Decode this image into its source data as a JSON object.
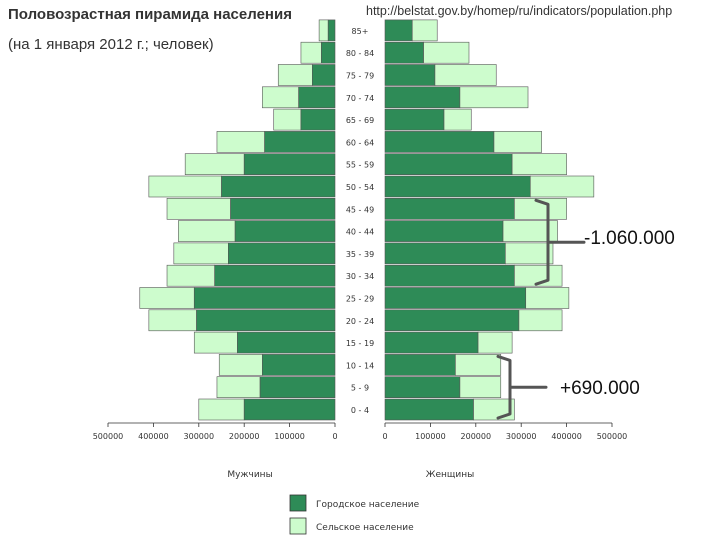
{
  "chart_data": {
    "type": "bar",
    "orientation": "horizontal-pyramid",
    "title": "Половозрастная пирамида населения",
    "subtitle": "(на 1 января 2012 г.; человек)",
    "source": "http://belstat.gov.by/homep/ru/indicators/population.php",
    "categories": [
      "0 - 4",
      "5 - 9",
      "10 - 14",
      "15 - 19",
      "20 - 24",
      "25 - 29",
      "30 - 34",
      "35 - 39",
      "40 - 44",
      "45 - 49",
      "50 - 54",
      "55 - 59",
      "60 - 64",
      "65 - 69",
      "70 - 74",
      "75 - 79",
      "80 - 84",
      "85+"
    ],
    "left_label": "Мужчины",
    "right_label": "Женщины",
    "left_ticks": [
      "500000",
      "400000",
      "300000",
      "200000",
      "100000",
      "0"
    ],
    "right_ticks": [
      "0",
      "100000",
      "200000",
      "300000",
      "400000",
      "500000"
    ],
    "xlim": [
      0,
      500000
    ],
    "series": [
      {
        "name": "Городское население",
        "color": "#2e8b57",
        "men": [
          200000,
          165000,
          160000,
          215000,
          305000,
          310000,
          265000,
          235000,
          220000,
          230000,
          250000,
          200000,
          155000,
          75000,
          80000,
          50000,
          30000,
          15000
        ],
        "women": [
          195000,
          165000,
          155000,
          205000,
          295000,
          310000,
          285000,
          265000,
          260000,
          285000,
          320000,
          280000,
          240000,
          130000,
          165000,
          110000,
          85000,
          60000
        ]
      },
      {
        "name": "Сельское население",
        "color": "#cdfccd",
        "men": [
          100000,
          95000,
          95000,
          95000,
          105000,
          120000,
          105000,
          120000,
          125000,
          140000,
          160000,
          130000,
          105000,
          60000,
          80000,
          75000,
          45000,
          20000
        ],
        "women": [
          90000,
          90000,
          100000,
          75000,
          95000,
          95000,
          105000,
          105000,
          120000,
          115000,
          140000,
          120000,
          105000,
          60000,
          150000,
          135000,
          100000,
          55000
        ]
      }
    ],
    "annotations": [
      {
        "text": "-1.060.000",
        "from_category": "30 - 34",
        "to_category": "45 - 49"
      },
      {
        "text": "+690.000",
        "from_category": "0 - 4",
        "to_category": "10 - 14"
      }
    ],
    "legend": {
      "placement": "bottom-center",
      "items": [
        "Городское население",
        "Сельское население"
      ]
    },
    "grid": false
  }
}
